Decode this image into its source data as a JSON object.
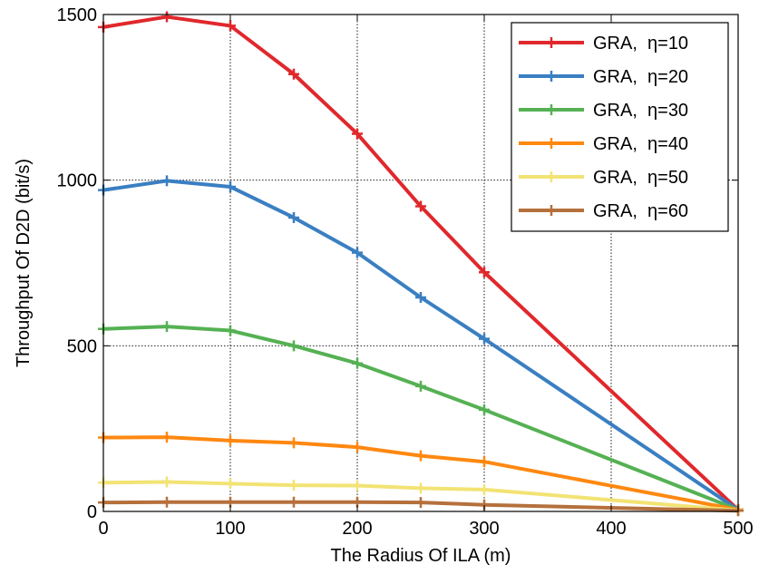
{
  "chart_data": {
    "type": "line",
    "title": "",
    "xlabel": "The Radius Of ILA (m)",
    "ylabel": "Throughput Of D2D (bit/s)",
    "xlim": [
      0,
      500
    ],
    "ylim": [
      0,
      1500
    ],
    "x_ticks": [
      "0",
      "100",
      "200",
      "300",
      "400",
      "500"
    ],
    "y_ticks": [
      "0",
      "500",
      "1000",
      "1500"
    ],
    "grid": true,
    "legend_position": "top-right",
    "x": [
      0,
      50,
      100,
      150,
      200,
      250,
      300,
      500
    ],
    "series": [
      {
        "name": "GRA,  η=10",
        "color": "#e0282c",
        "values": [
          1462,
          1493,
          1466,
          1320,
          1140,
          921,
          722,
          5
        ]
      },
      {
        "name": "GRA,  η=20",
        "color": "#3a7fc2",
        "values": [
          970,
          998,
          980,
          887,
          781,
          646,
          521,
          5
        ]
      },
      {
        "name": "GRA,  η=30",
        "color": "#55b153",
        "values": [
          551,
          558,
          546,
          500,
          447,
          378,
          307,
          5
        ]
      },
      {
        "name": "GRA,  η=40",
        "color": "#ff8811",
        "values": [
          223,
          224,
          214,
          207,
          194,
          168,
          150,
          5
        ]
      },
      {
        "name": "GRA,  η=50",
        "color": "#f2e374",
        "values": [
          87,
          89,
          84,
          79,
          78,
          70,
          66,
          3
        ]
      },
      {
        "name": "GRA,  η=60",
        "color": "#b5703c",
        "values": [
          27,
          28,
          28,
          28,
          28,
          27,
          20,
          2
        ]
      }
    ]
  }
}
